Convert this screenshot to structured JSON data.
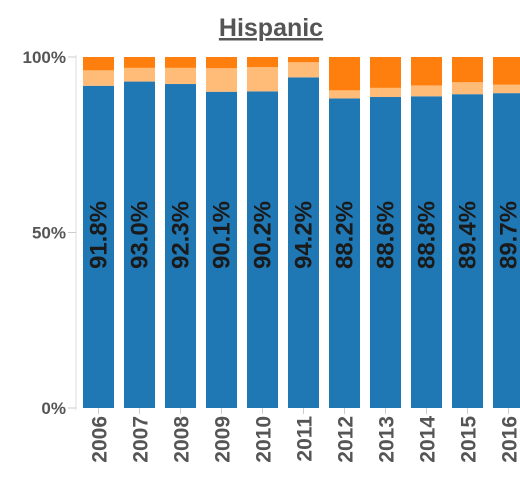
{
  "chart_data": {
    "type": "bar",
    "stacked": true,
    "normalized": true,
    "title": "Hispanic",
    "xlabel": "",
    "ylabel": "",
    "ylim": [
      0,
      100
    ],
    "y_ticks": [
      "0%",
      "50%",
      "100%"
    ],
    "categories": [
      "2006",
      "2007",
      "2008",
      "2009",
      "2010",
      "2011",
      "2012",
      "2013",
      "2014",
      "2015",
      "2016"
    ],
    "series": [
      {
        "color": "#1f77b4",
        "values": [
          91.8,
          93.0,
          92.3,
          90.1,
          90.2,
          94.2,
          88.2,
          88.6,
          88.8,
          89.4,
          89.7
        ]
      },
      {
        "color": "#ffbb78",
        "values": [
          4.4,
          3.9,
          4.6,
          6.7,
          6.9,
          4.3,
          2.3,
          2.6,
          3.1,
          3.4,
          2.4
        ]
      },
      {
        "color": "#ff7f0e",
        "values": [
          3.8,
          3.1,
          3.1,
          3.2,
          2.9,
          1.5,
          9.5,
          8.8,
          8.1,
          7.2,
          7.9
        ]
      }
    ],
    "data_labels": [
      "91.8%",
      "93.0%",
      "92.3%",
      "90.1%",
      "90.2%",
      "94.2%",
      "88.2%",
      "88.6%",
      "88.8%",
      "89.4%",
      "89.7%"
    ],
    "grid": false,
    "legend": "none"
  }
}
